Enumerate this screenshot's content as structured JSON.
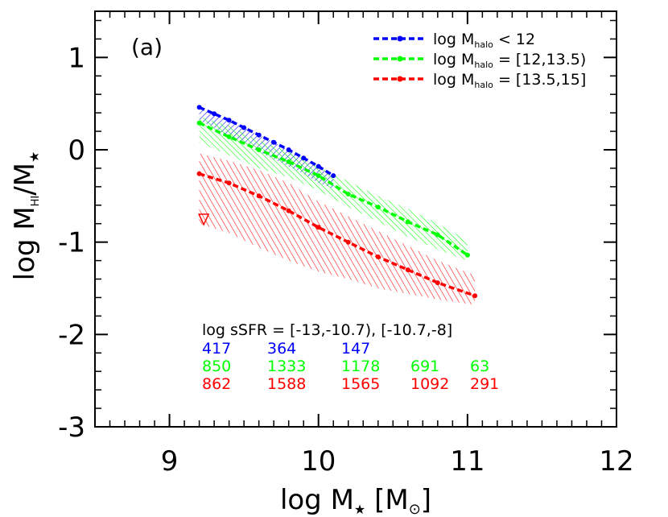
{
  "chart_data": {
    "type": "line",
    "panel_label": "(a)",
    "xlabel_prefix": "log M",
    "xlabel_sub": "★",
    "xlabel_unit_open": " [M",
    "xlabel_unit_sub": "⊙",
    "xlabel_unit_close": "]",
    "ylabel_prefix": "log M",
    "ylabel_sub1": "HI",
    "ylabel_mid": "/M",
    "ylabel_sub2": "★",
    "xlim": [
      8.5,
      12.0
    ],
    "ylim": [
      -3.0,
      1.5
    ],
    "xticks": [
      "9",
      "10",
      "11",
      "12"
    ],
    "yticks": [
      "1",
      "0",
      "-1",
      "-2",
      "-3"
    ],
    "grid": false,
    "legend_position": "top-right",
    "series": [
      {
        "name_main": "log M",
        "name_sub": "halo",
        "name_rest": " < 12",
        "color": "#0000ff",
        "x": [
          9.2,
          9.3,
          9.4,
          9.5,
          9.6,
          9.7,
          9.8,
          9.9,
          10.0,
          10.1
        ],
        "y": [
          0.46,
          0.39,
          0.32,
          0.24,
          0.16,
          0.08,
          0.0,
          -0.09,
          -0.18,
          -0.28
        ],
        "band_upper": [
          0.46,
          0.39,
          0.32,
          0.24,
          0.16,
          0.08,
          0.0,
          -0.09,
          -0.18,
          -0.3
        ],
        "band_lower": [
          0.32,
          0.24,
          0.14,
          0.06,
          -0.02,
          -0.1,
          -0.18,
          -0.26,
          -0.36,
          -0.42
        ]
      },
      {
        "name_main": "log M",
        "name_sub": "halo",
        "name_rest": " = [12,13.5)",
        "color": "#00ff00",
        "x": [
          9.2,
          9.4,
          9.6,
          9.8,
          10.0,
          10.2,
          10.4,
          10.6,
          10.8,
          11.0
        ],
        "y": [
          0.29,
          0.14,
          0.0,
          -0.13,
          -0.28,
          -0.48,
          -0.62,
          -0.78,
          -0.92,
          -1.14
        ],
        "band_upper": [
          0.36,
          0.26,
          0.1,
          -0.02,
          -0.18,
          -0.34,
          -0.5,
          -0.64,
          -0.8,
          -0.98
        ],
        "band_lower": [
          0.08,
          -0.06,
          -0.2,
          -0.3,
          -0.44,
          -0.62,
          -0.78,
          -0.94,
          -1.08,
          -1.2
        ]
      },
      {
        "name_main": "log M",
        "name_sub": "halo",
        "name_rest": " = [13.5,15]",
        "color": "#ff0000",
        "x": [
          9.2,
          9.4,
          9.6,
          9.8,
          10.0,
          10.2,
          10.4,
          10.6,
          10.8,
          11.05
        ],
        "y": [
          -0.26,
          -0.36,
          -0.5,
          -0.66,
          -0.84,
          -1.0,
          -1.16,
          -1.3,
          -1.44,
          -1.58
        ],
        "band_upper": [
          -0.04,
          -0.12,
          -0.22,
          -0.36,
          -0.56,
          -0.72,
          -0.88,
          -1.04,
          -1.2,
          -1.36
        ],
        "band_lower": [
          -0.8,
          -0.9,
          -1.06,
          -1.2,
          -1.32,
          -1.4,
          -1.5,
          -1.56,
          -1.62,
          -1.68
        ]
      }
    ],
    "upper_limit_marker": {
      "x": 9.23,
      "y": -0.75,
      "color": "#ff0000"
    },
    "annotation_title": "log sSFR = [-13,-10.7), [-10.7,-8]",
    "count_rows": [
      {
        "color": "#0000ff",
        "values": [
          "417",
          "364",
          "147"
        ]
      },
      {
        "color": "#00ff00",
        "values": [
          "850",
          "1333",
          "1178",
          "691",
          "63"
        ]
      },
      {
        "color": "#ff0000",
        "values": [
          "862",
          "1588",
          "1565",
          "1092",
          "291"
        ]
      }
    ]
  }
}
